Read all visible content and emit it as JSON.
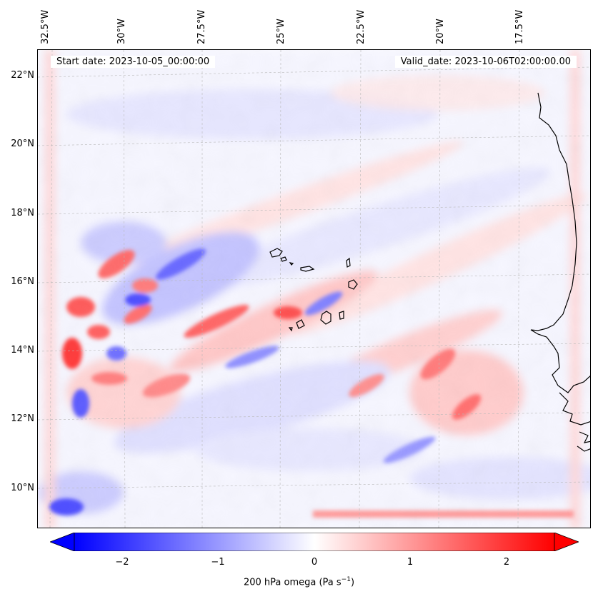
{
  "map": {
    "start_date_text": "Start date: 2023-10-05_00:00:00",
    "valid_date_text": "Valid_date: 2023-10-06T02:00:00.00",
    "lat_labels": [
      "22°N",
      "20°N",
      "18°N",
      "16°N",
      "14°N",
      "12°N",
      "10°N"
    ],
    "lon_labels": [
      "32.5°W",
      "30°W",
      "27.5°W",
      "25°W",
      "22.5°W",
      "20°W",
      "17.5°W"
    ],
    "field_colors": {
      "negative": "#0000ff",
      "zero": "#ffffff",
      "positive": "#ff0000"
    },
    "coastline_color": "#000000"
  },
  "colorbar": {
    "ticks": [
      "−2",
      "−1",
      "0",
      "1",
      "2"
    ],
    "label_text": "200 hPa omega (Pa s",
    "label_exponent": "−1",
    "label_close": ")",
    "range": [
      -2.5,
      2.5
    ],
    "extend": "both"
  }
}
